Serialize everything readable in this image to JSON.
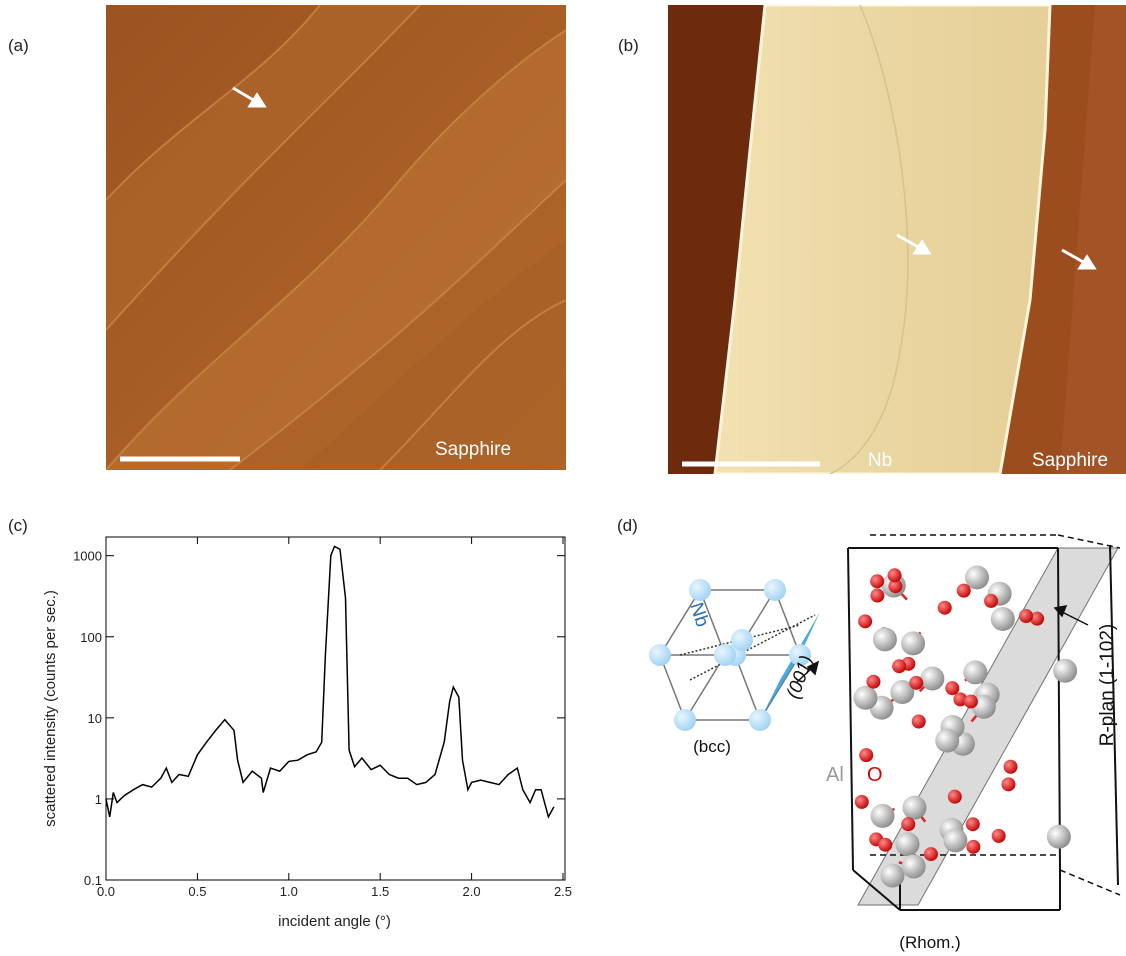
{
  "panels": [
    {
      "label": "(a)",
      "annotations": [
        "Sapphire"
      ]
    },
    {
      "label": "(b)",
      "annotations": [
        "Nb",
        "Sapphire"
      ]
    },
    {
      "label": "(d)",
      "annotations": [
        "Nb",
        "(001)",
        "(bcc)",
        "Al",
        "O",
        "R-plan (1-102)",
        "(Rhom.)"
      ]
    }
  ],
  "chart_data": {
    "type": "line",
    "label": "(c)",
    "xlabel": "incident angle (°)",
    "ylabel": "scattered intensity (counts per sec.)",
    "x": [
      0.0,
      0.02,
      0.04,
      0.06,
      0.1,
      0.15,
      0.2,
      0.25,
      0.3,
      0.33,
      0.36,
      0.4,
      0.45,
      0.5,
      0.55,
      0.6,
      0.65,
      0.7,
      0.72,
      0.75,
      0.8,
      0.85,
      0.86,
      0.9,
      0.95,
      1.0,
      1.05,
      1.1,
      1.15,
      1.18,
      1.2,
      1.23,
      1.25,
      1.28,
      1.31,
      1.33,
      1.36,
      1.4,
      1.45,
      1.5,
      1.55,
      1.6,
      1.65,
      1.7,
      1.75,
      1.8,
      1.85,
      1.88,
      1.9,
      1.93,
      1.95,
      1.98,
      2.0,
      2.05,
      2.1,
      2.15,
      2.2,
      2.25,
      2.28,
      2.32,
      2.35,
      2.38,
      2.42,
      2.45
    ],
    "series": [
      {
        "color": "#000000",
        "values": [
          1.0,
          0.6,
          1.2,
          0.9,
          1.1,
          1.3,
          1.5,
          1.4,
          1.8,
          2.4,
          1.6,
          2.0,
          1.9,
          3.5,
          5,
          7,
          9.5,
          7,
          3,
          1.6,
          2.2,
          1.8,
          1.2,
          2.4,
          2.2,
          2.9,
          3.0,
          3.5,
          3.8,
          5,
          60,
          1000,
          1300,
          1200,
          300,
          4,
          2.5,
          3.2,
          2.3,
          2.6,
          2.0,
          1.8,
          1.8,
          1.5,
          1.6,
          2.0,
          5,
          16,
          24,
          18,
          3,
          1.3,
          1.6,
          1.7,
          1.6,
          1.5,
          2.0,
          2.4,
          1.3,
          0.9,
          1.3,
          1.3,
          0.6,
          0.8
        ]
      }
    ],
    "xlim": [
      0,
      2.5
    ],
    "ylim": [
      0.1,
      1700
    ],
    "xticks": [
      {
        "value": 0,
        "label": "0.0"
      },
      0.5,
      {
        "value": 1,
        "label": "1.0"
      },
      1.5,
      {
        "value": 2,
        "label": "2.0"
      },
      2.5
    ],
    "yticks": [
      0.1,
      1,
      10,
      100,
      1000
    ],
    "log_y": true
  }
}
